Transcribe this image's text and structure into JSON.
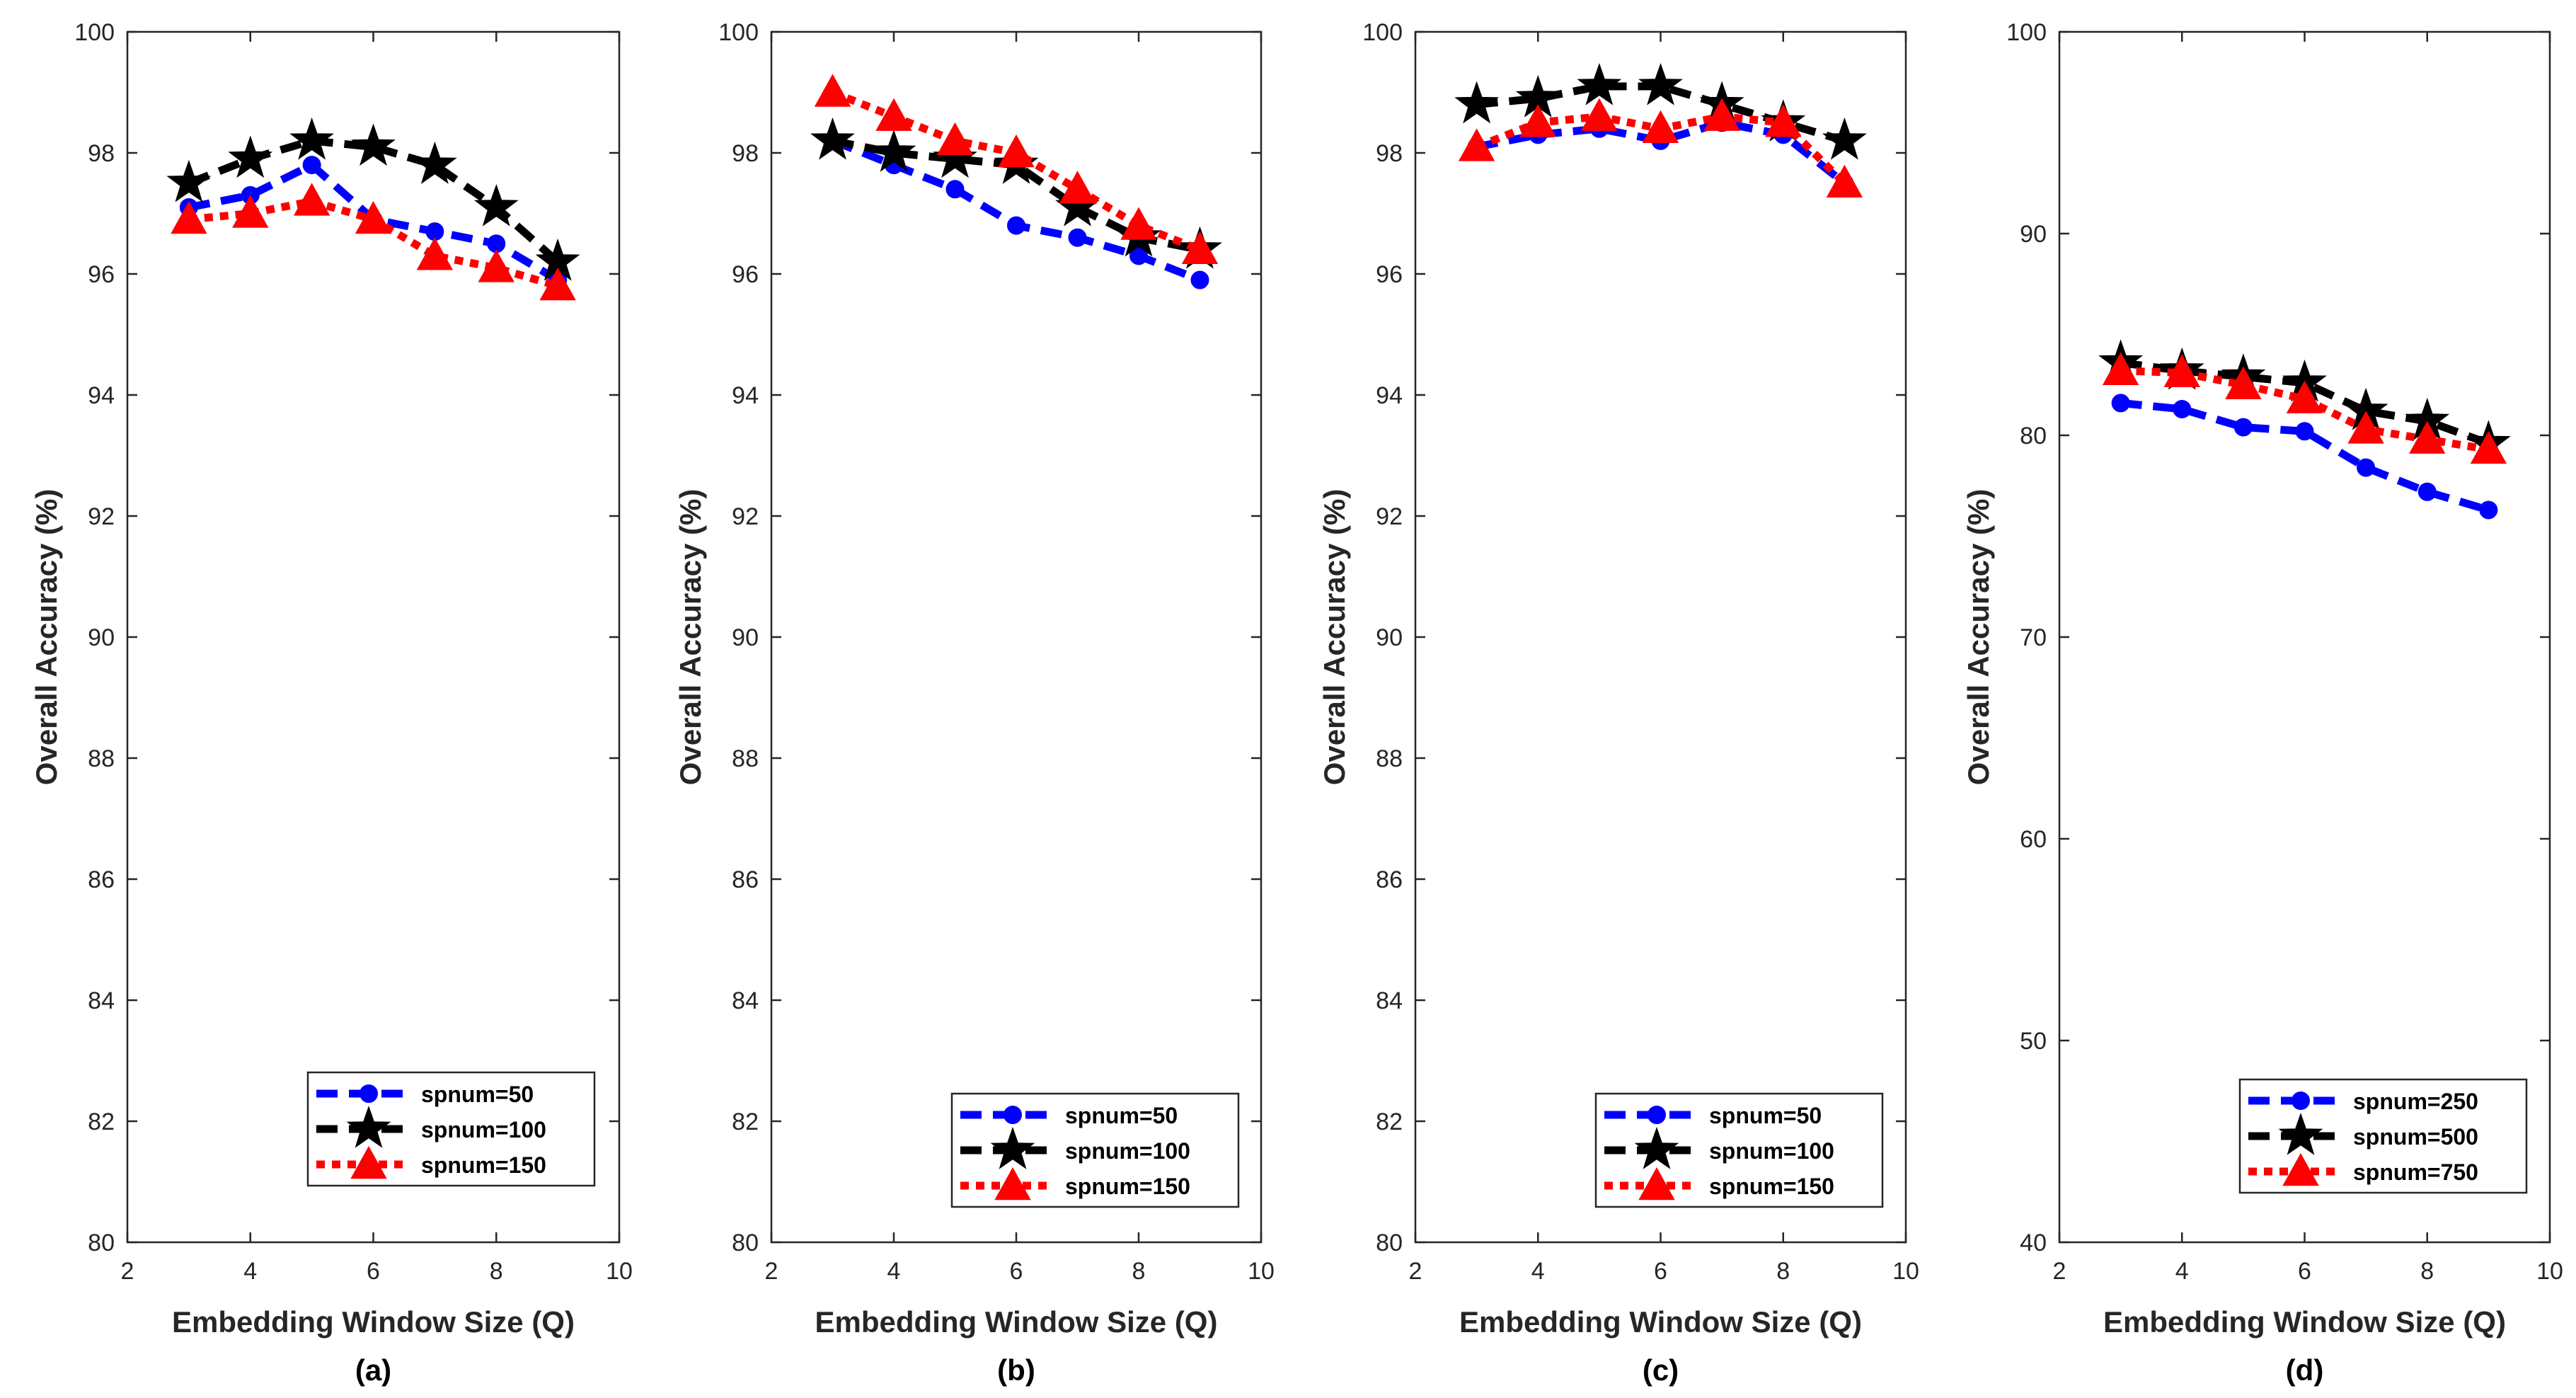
{
  "chart_data": [
    {
      "type": "line",
      "caption": "(a)",
      "xlabel": "Embedding Window Size (Q)",
      "ylabel": "Overall Accuracy (%)",
      "xlim": [
        2,
        10
      ],
      "ylim": [
        80,
        100
      ],
      "xticks": [
        "2",
        "4",
        "6",
        "8",
        "10"
      ],
      "yticks": [
        "80",
        "82",
        "84",
        "86",
        "88",
        "90",
        "92",
        "94",
        "96",
        "98",
        "100"
      ],
      "legend_position": "bottom-right",
      "x": [
        3,
        4,
        5,
        6,
        7,
        8,
        9
      ],
      "series": [
        {
          "name": "spnum=50",
          "values": [
            97.1,
            97.3,
            97.8,
            96.9,
            96.7,
            96.5,
            95.9
          ]
        },
        {
          "name": "spnum=100",
          "values": [
            97.5,
            97.9,
            98.2,
            98.1,
            97.8,
            97.1,
            96.2
          ]
        },
        {
          "name": "spnum=150",
          "values": [
            96.9,
            97.0,
            97.2,
            96.9,
            96.3,
            96.1,
            95.8
          ]
        }
      ]
    },
    {
      "type": "line",
      "caption": "(b)",
      "xlabel": "Embedding Window Size (Q)",
      "ylabel": "Overall Accuracy (%)",
      "xlim": [
        2,
        10
      ],
      "ylim": [
        80,
        100
      ],
      "xticks": [
        "2",
        "4",
        "6",
        "8",
        "10"
      ],
      "yticks": [
        "80",
        "82",
        "84",
        "86",
        "88",
        "90",
        "92",
        "94",
        "96",
        "98",
        "100"
      ],
      "legend_position": "bottom-right",
      "x": [
        3,
        4,
        5,
        6,
        7,
        8,
        9
      ],
      "series": [
        {
          "name": "spnum=50",
          "values": [
            98.2,
            97.8,
            97.4,
            96.8,
            96.6,
            96.3,
            95.9
          ]
        },
        {
          "name": "spnum=100",
          "values": [
            98.2,
            98.0,
            97.9,
            97.8,
            97.1,
            96.6,
            96.4
          ]
        },
        {
          "name": "spnum=150",
          "values": [
            99.0,
            98.6,
            98.2,
            98.0,
            97.4,
            96.8,
            96.4
          ]
        }
      ]
    },
    {
      "type": "line",
      "caption": "(c)",
      "xlabel": "Embedding Window Size (Q)",
      "ylabel": "Overall Accuracy (%)",
      "xlim": [
        2,
        10
      ],
      "ylim": [
        80,
        100
      ],
      "xticks": [
        "2",
        "4",
        "6",
        "8",
        "10"
      ],
      "yticks": [
        "80",
        "82",
        "84",
        "86",
        "88",
        "90",
        "92",
        "94",
        "96",
        "98",
        "100"
      ],
      "legend_position": "bottom-right",
      "x": [
        3,
        4,
        5,
        6,
        7,
        8,
        9
      ],
      "series": [
        {
          "name": "spnum=50",
          "values": [
            98.1,
            98.3,
            98.4,
            98.2,
            98.5,
            98.3,
            97.5
          ]
        },
        {
          "name": "spnum=100",
          "values": [
            98.8,
            98.9,
            99.1,
            99.1,
            98.8,
            98.5,
            98.2
          ]
        },
        {
          "name": "spnum=150",
          "values": [
            98.1,
            98.5,
            98.6,
            98.4,
            98.6,
            98.5,
            97.5
          ]
        }
      ]
    },
    {
      "type": "line",
      "caption": "(d)",
      "xlabel": "Embedding Window Size (Q)",
      "ylabel": "Overall Accuracy (%)",
      "xlim": [
        2,
        10
      ],
      "ylim": [
        40,
        100
      ],
      "xticks": [
        "2",
        "4",
        "6",
        "8",
        "10"
      ],
      "yticks": [
        "40",
        "50",
        "60",
        "70",
        "80",
        "90",
        "100"
      ],
      "legend_position": "bottom-right",
      "x": [
        3,
        4,
        5,
        6,
        7,
        8,
        9
      ],
      "series": [
        {
          "name": "spnum=250",
          "values": [
            81.6,
            81.3,
            80.4,
            80.2,
            78.4,
            77.2,
            76.3
          ]
        },
        {
          "name": "spnum=500",
          "values": [
            83.6,
            83.2,
            82.9,
            82.6,
            81.2,
            80.7,
            79.6
          ]
        },
        {
          "name": "spnum=750",
          "values": [
            83.2,
            83.1,
            82.5,
            81.8,
            80.3,
            79.8,
            79.3
          ]
        }
      ]
    }
  ],
  "series_styles": [
    {
      "color": "#0000ff",
      "dash": "30,16",
      "marker": "circle"
    },
    {
      "color": "#000000",
      "dash": "30,16",
      "marker": "star"
    },
    {
      "color": "#ff0000",
      "dash": "12,10",
      "marker": "triangle"
    }
  ]
}
